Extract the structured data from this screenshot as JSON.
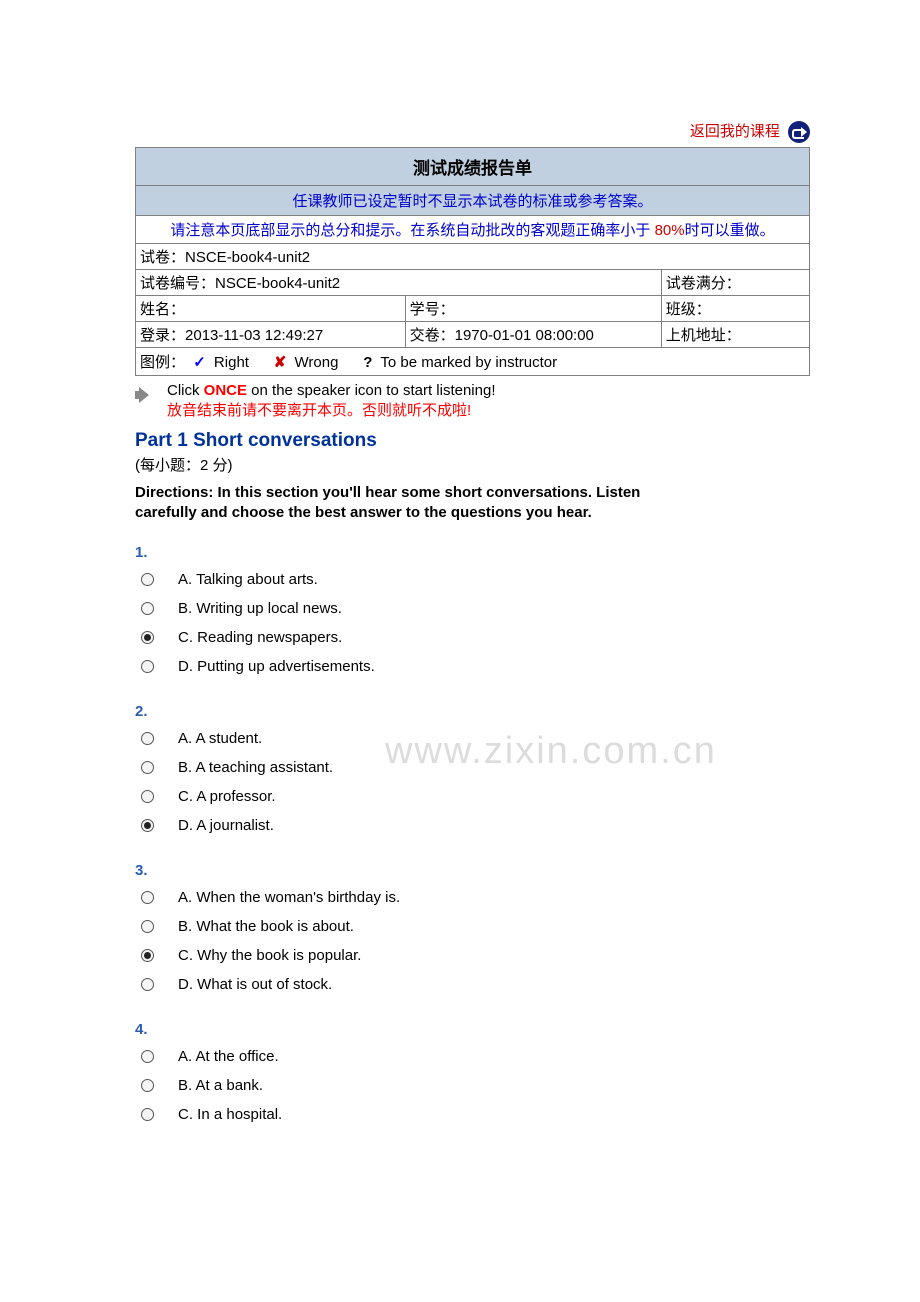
{
  "topLink": {
    "text": "返回我的课程"
  },
  "reportHeader": {
    "title": "测试成绩报告单",
    "subtitle": "任课教师已设定暂时不显示本试卷的标准或参考答案。",
    "noticePrefix": "请注意本页底部显示的总分和提示。在系统自动批改的客观题正确率小于 ",
    "noticePct": "80%",
    "noticeSuffix": "时可以重做。",
    "rows": {
      "paperLabel": "试卷：",
      "paperValue": "NSCE-book4-unit2",
      "paperCodeLabel": "试卷编号：",
      "paperCodeValue": "NSCE-book4-unit2",
      "fullScoreLabel": "试卷满分：",
      "nameLabel": "姓名：",
      "studentIdLabel": "学号：",
      "classLabel": "班级：",
      "loginLabel": "登录：",
      "loginValue": "2013-11-03 12:49:27",
      "submitLabel": "交卷：",
      "submitValue": "1970-01-01 08:00:00",
      "addrLabel": "上机地址：",
      "legendLabel": "图例：",
      "rightText": " Right",
      "wrongText": " Wrong",
      "toBeMarked": " To be marked by instructor"
    }
  },
  "audio": {
    "clickPrefix": "Click ",
    "once": "ONCE",
    "clickSuffix": " on the speaker icon to start listening!",
    "warn": "放音结束前请不要离开本页。否则就听不成啦!"
  },
  "part1": {
    "title": "Part 1 Short conversations",
    "points": "(每小题：2 分)",
    "directions": "Directions: In this section you'll hear some short conversations. Listen carefully and choose the best answer to the questions you hear."
  },
  "questions": [
    {
      "num": "1.",
      "options": [
        {
          "label": "A. Talking about arts.",
          "checked": false
        },
        {
          "label": "B. Writing up local news.",
          "checked": false
        },
        {
          "label": "C. Reading newspapers.",
          "checked": true
        },
        {
          "label": "D. Putting up advertisements.",
          "checked": false
        }
      ]
    },
    {
      "num": "2.",
      "options": [
        {
          "label": "A. A student.",
          "checked": false
        },
        {
          "label": "B. A teaching assistant.",
          "checked": false
        },
        {
          "label": "C. A professor.",
          "checked": false
        },
        {
          "label": "D. A journalist.",
          "checked": true
        }
      ]
    },
    {
      "num": "3.",
      "options": [
        {
          "label": "A. When the woman's birthday is.",
          "checked": false
        },
        {
          "label": "B. What the book is about.",
          "checked": false
        },
        {
          "label": "C. Why the book is popular.",
          "checked": true
        },
        {
          "label": "D. What is out of stock.",
          "checked": false
        }
      ]
    },
    {
      "num": "4.",
      "options": [
        {
          "label": "A. At the office.",
          "checked": false
        },
        {
          "label": "B. At a bank.",
          "checked": false
        },
        {
          "label": "C. In a hospital.",
          "checked": false
        }
      ]
    }
  ],
  "watermark": "www.zixin.com.cn",
  "colors": {
    "headerBg": "#c0d0e0",
    "border": "#808080",
    "linkRed": "#cc0000",
    "blueText": "#0000cc",
    "partTitle": "#003399",
    "qnum": "#2a5db0",
    "watermark": "#dcdcdc"
  }
}
